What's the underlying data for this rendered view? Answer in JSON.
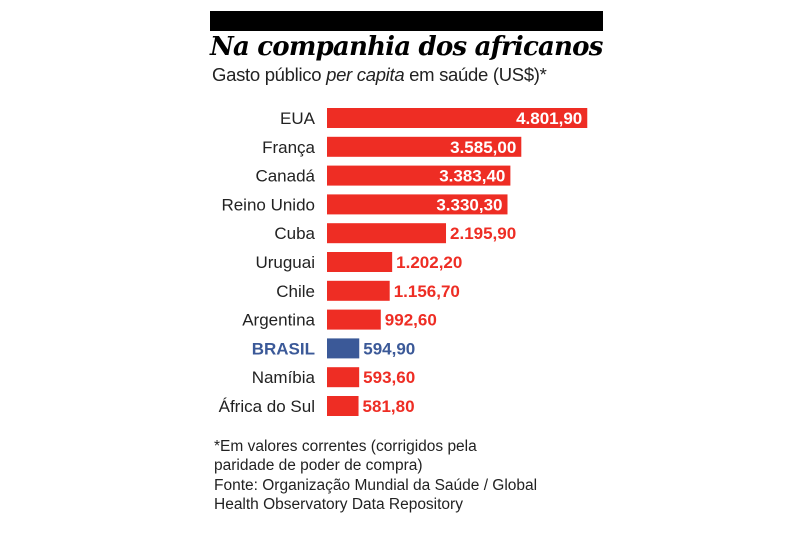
{
  "header": {
    "title": "Na companhia dos africanos",
    "subtitle_pre": "Gasto público ",
    "subtitle_italic": "per capita",
    "subtitle_post": " em saúde (US$)*"
  },
  "footnotes": [
    "*Em valores correntes (corrigidos pela",
    "paridade de poder de compra)",
    "Fonte: Organização Mundial da Saúde / Global",
    "Health Observatory Data Repository"
  ],
  "colors": {
    "bar": "#ee2d24",
    "highlight": "#3b5998",
    "label_on_bar": "#ffffff",
    "label_outside": "#ee2d24"
  },
  "chart_data": {
    "type": "bar",
    "orientation": "horizontal",
    "categories": [
      "EUA",
      "França",
      "Canadá",
      "Reino Unido",
      "Cuba",
      "Uruguai",
      "Chile",
      "Argentina",
      "BRASIL",
      "Namíbia",
      "África do Sul"
    ],
    "values": [
      4801.9,
      3585.0,
      3383.4,
      3330.3,
      2195.9,
      1202.2,
      1156.7,
      992.6,
      594.9,
      593.6,
      581.8
    ],
    "value_labels": [
      "4.801,90",
      "3.585,00",
      "3.383,40",
      "3.330,30",
      "2.195,90",
      "1.202,20",
      "1.156,70",
      "992,60",
      "594,90",
      "593,60",
      "581,80"
    ],
    "highlight": "BRASIL",
    "title": "Na companhia dos africanos",
    "xlabel": "",
    "ylabel": ""
  }
}
